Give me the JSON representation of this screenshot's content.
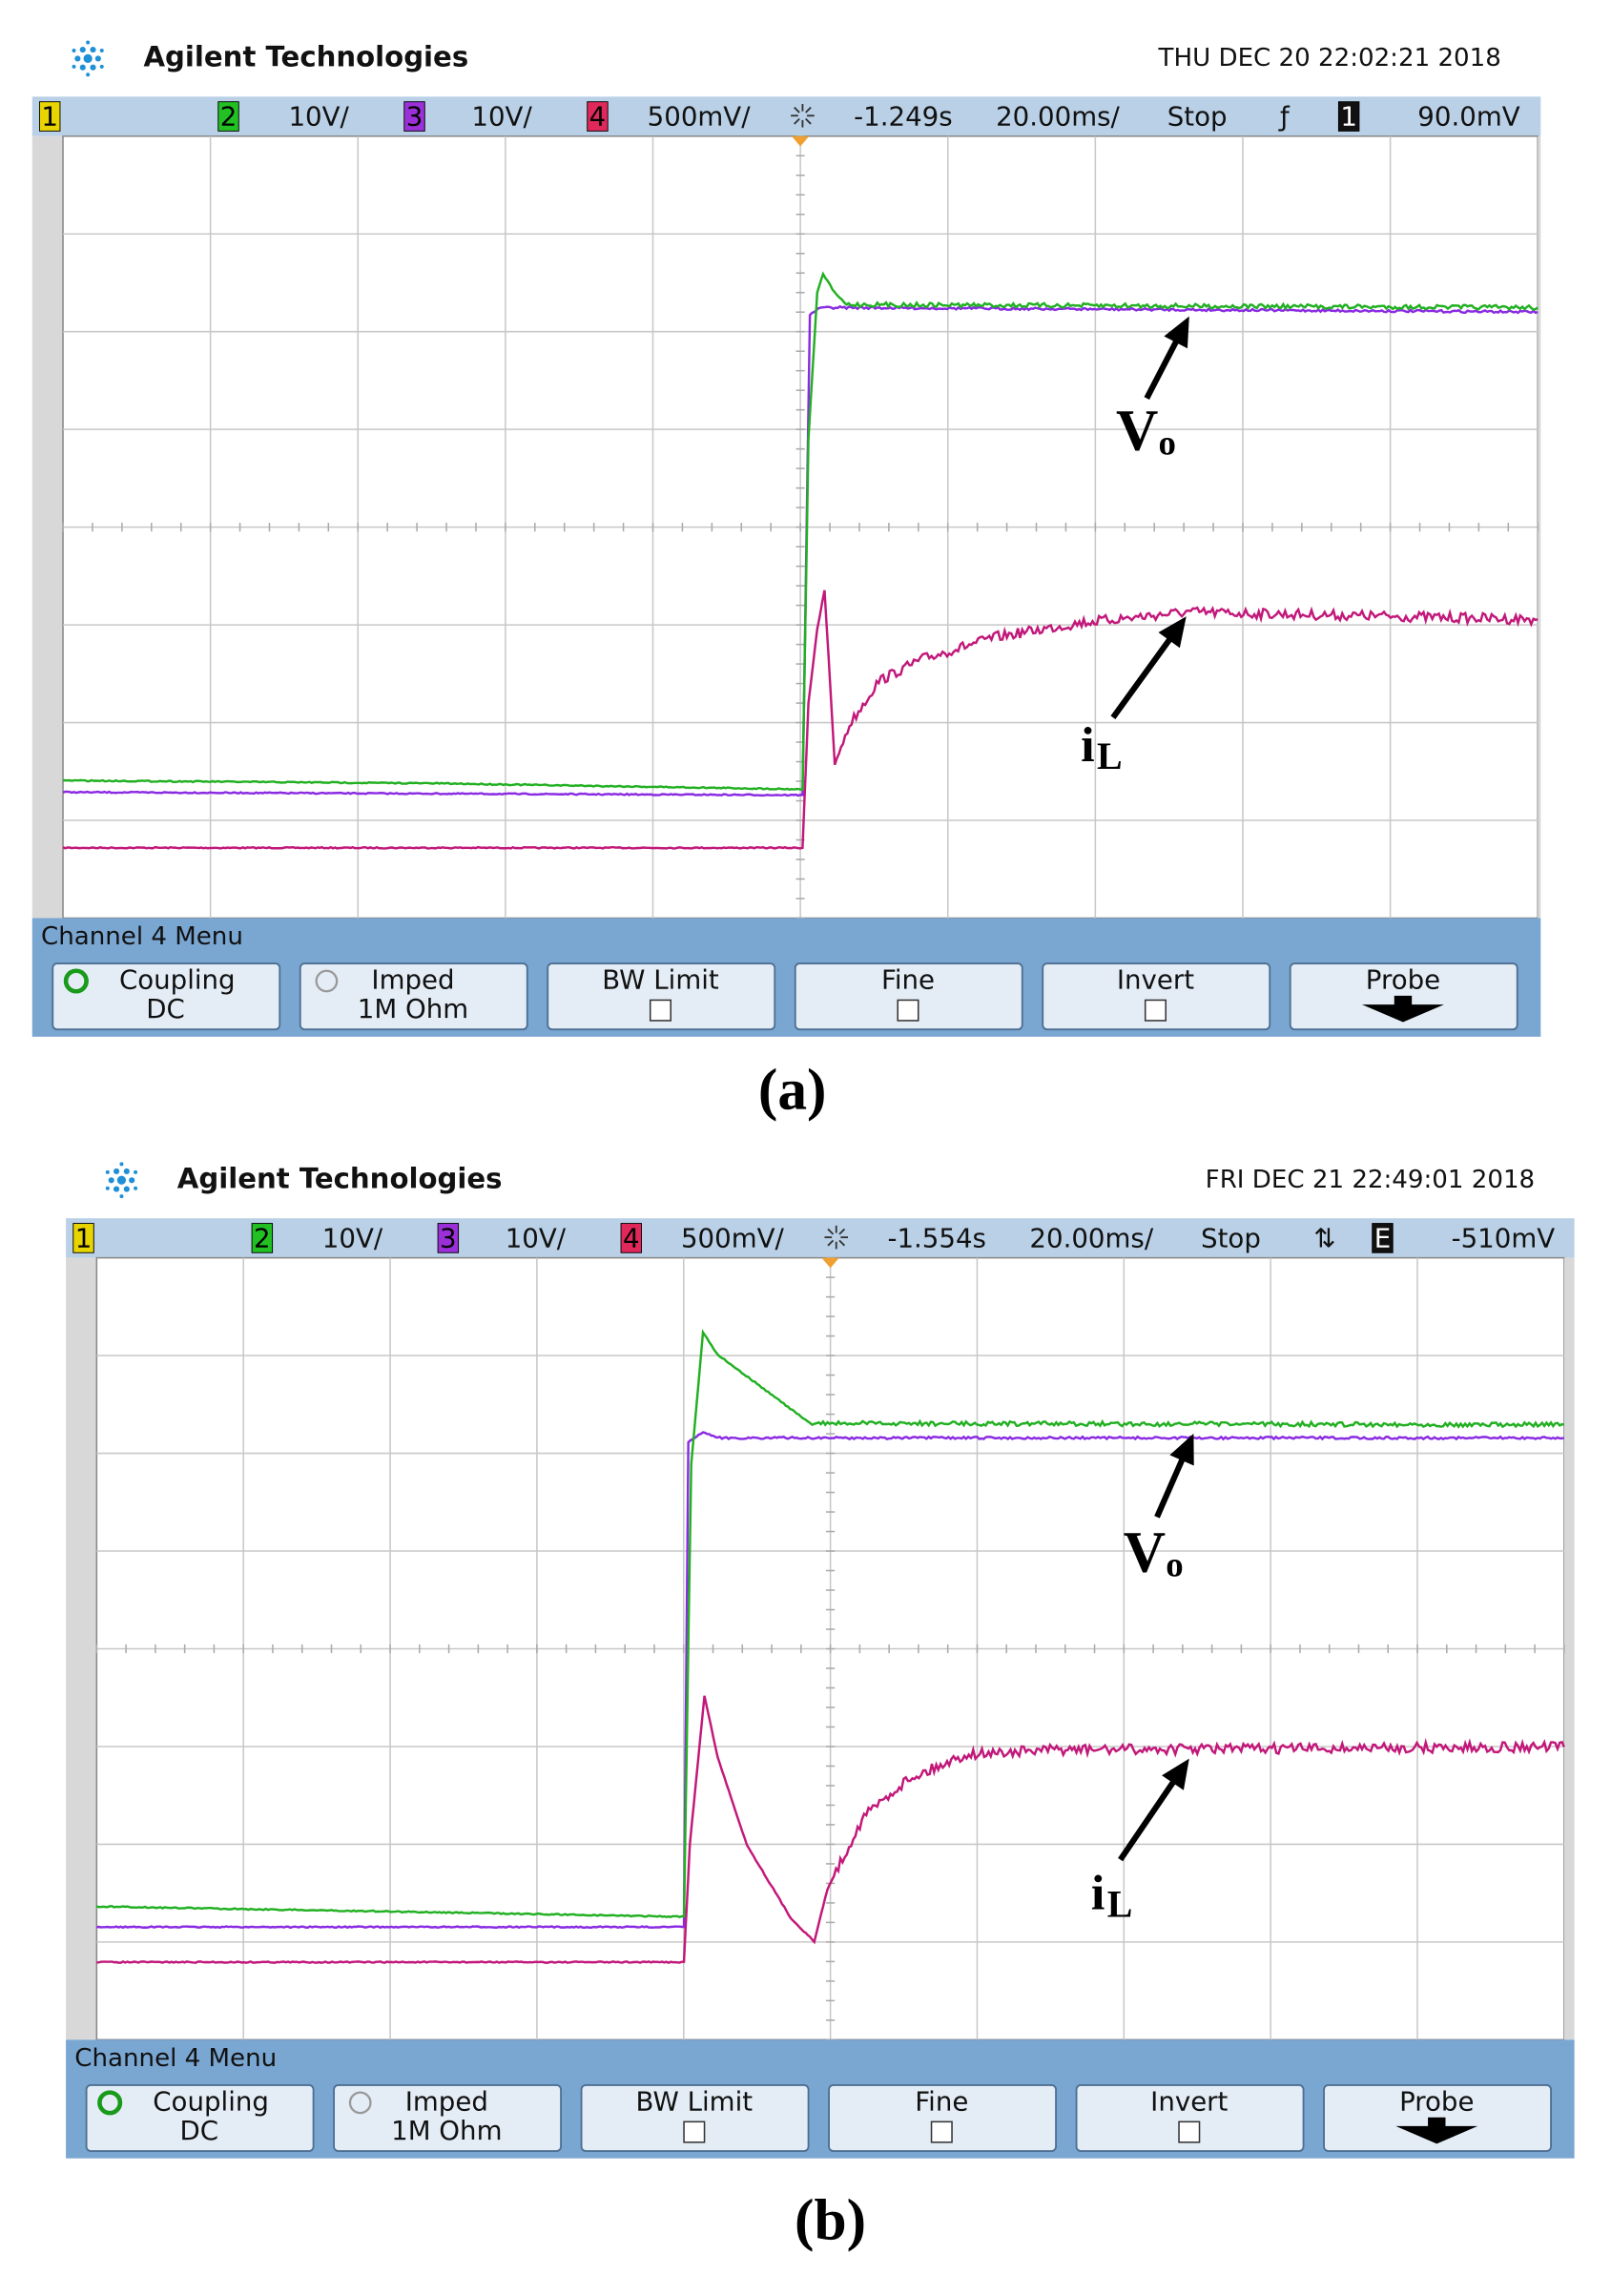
{
  "panels": [
    {
      "header": {
        "brand": "Agilent Technologies",
        "timestamp": "THU DEC 20 22:02:21 2018"
      },
      "status": [
        "1",
        "2",
        "10V/",
        "3",
        "10V/",
        "4",
        "500mV/",
        "-1.249s",
        "20.00ms/",
        "Stop",
        "ƒ",
        "1",
        "90.0mV"
      ],
      "menu": {
        "title": "Channel 4  Menu",
        "softkeys": [
          {
            "label": "Coupling",
            "value": "DC"
          },
          {
            "label": "Imped",
            "value": "1M Ohm"
          },
          {
            "label": "BW Limit"
          },
          {
            "label": "Fine"
          },
          {
            "label": "Invert"
          },
          {
            "label": "Probe"
          }
        ]
      },
      "annotations": {
        "vo": {
          "main": "V",
          "sub": "o"
        },
        "il": {
          "main": "i",
          "sub": "L"
        }
      },
      "caption": "(a)"
    },
    {
      "header": {
        "brand": "Agilent Technologies",
        "timestamp": "FRI DEC 21 22:49:01 2018"
      },
      "status": [
        "1",
        "2",
        "10V/",
        "3",
        "10V/",
        "4",
        "500mV/",
        "-1.554s",
        "20.00ms/",
        "Stop",
        "⇅",
        "E",
        "-510mV"
      ],
      "menu": {
        "title": "Channel 4  Menu",
        "softkeys": [
          {
            "label": "Coupling",
            "value": "DC"
          },
          {
            "label": "Imped",
            "value": "1M Ohm"
          },
          {
            "label": "BW Limit"
          },
          {
            "label": "Fine"
          },
          {
            "label": "Invert"
          },
          {
            "label": "Probe"
          }
        ]
      },
      "annotations": {
        "vo": {
          "main": "V",
          "sub": "o"
        },
        "il": {
          "main": "i",
          "sub": "L"
        }
      },
      "caption": "(b)"
    }
  ]
}
